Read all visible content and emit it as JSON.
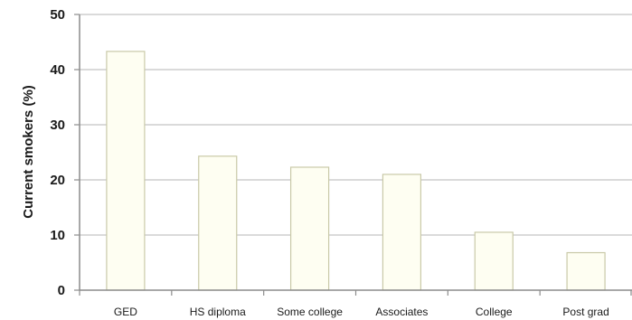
{
  "chart_data": {
    "type": "bar",
    "title": "",
    "xlabel": "",
    "ylabel": "Current smokers (%)",
    "categories": [
      "GED",
      "HS diploma",
      "Some college",
      "Associates",
      "College",
      "Post grad"
    ],
    "values": [
      43.3,
      24.3,
      22.3,
      21.0,
      10.5,
      6.8
    ],
    "ylim": [
      0,
      50
    ],
    "yticks": [
      0,
      10,
      20,
      30,
      40,
      50
    ],
    "grid": true,
    "legend": "none",
    "colors": {
      "bar_fill": "#fefef2",
      "bar_stroke": "#c9c9a8",
      "grid": "#b4b4b4"
    }
  }
}
